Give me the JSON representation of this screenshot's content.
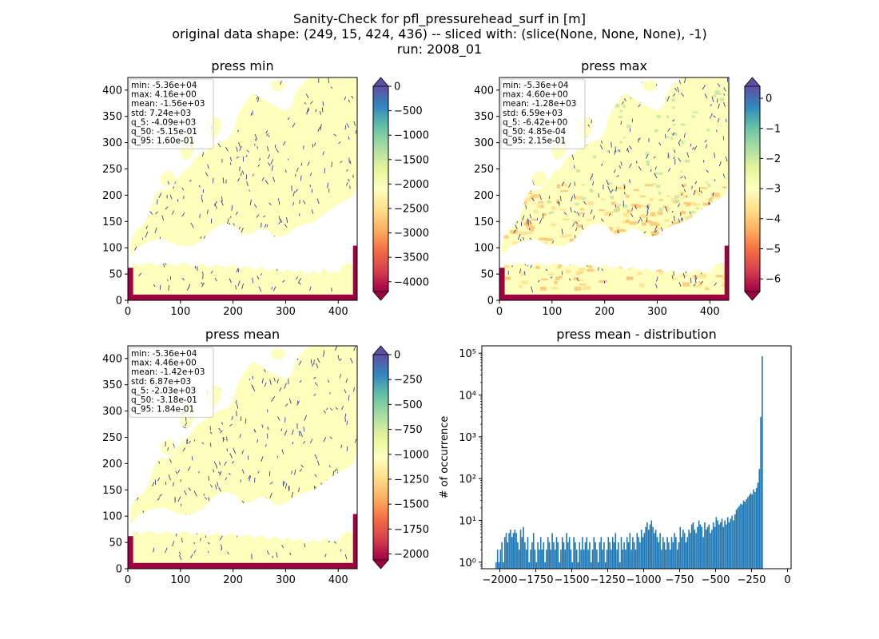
{
  "suptitle": {
    "line1": "Sanity-Check for pfl_pressurehead_surf in [m]",
    "line2": "original data shape: (249, 15, 424, 436) -- sliced with: (slice(None, None, None), -1)",
    "line3": "run: 2008_01"
  },
  "colors": {
    "land": "#fefebd",
    "low_extreme": "#9e0142",
    "river": "#313695",
    "hist_bar": "#1f77b4",
    "colormap": "Spectral"
  },
  "chart_data": [
    {
      "type": "heatmap",
      "title": "press min",
      "xticks": [
        0,
        100,
        200,
        300,
        400
      ],
      "yticks": [
        0,
        50,
        100,
        150,
        200,
        250,
        300,
        350,
        400
      ],
      "xlim": [
        0,
        436
      ],
      "ylim": [
        0,
        424
      ],
      "colorbar": {
        "vmin": -4200,
        "vmax": 0,
        "ticks": [
          0,
          -500,
          -1000,
          -1500,
          -2000,
          -2500,
          -3000,
          -3500,
          -4000
        ],
        "extend": "both"
      },
      "stats": [
        "min: -5.36e+04",
        "max: 4.16e+00",
        "mean: -1.56e+03",
        "std: 7.24e+03",
        "q_5: -4.09e+03",
        "q_50: -5.15e-01",
        "q_95: 1.60e-01"
      ]
    },
    {
      "type": "heatmap",
      "title": "press max",
      "xticks": [
        0,
        100,
        200,
        300,
        400
      ],
      "yticks": [
        0,
        50,
        100,
        150,
        200,
        250,
        300,
        350,
        400
      ],
      "xlim": [
        0,
        436
      ],
      "ylim": [
        0,
        424
      ],
      "colorbar": {
        "vmin": -6.42,
        "vmax": 0.4,
        "ticks": [
          0,
          -1,
          -2,
          -3,
          -4,
          -5,
          -6
        ],
        "extend": "both"
      },
      "stats": [
        "min: -5.36e+04",
        "max: 4.60e+00",
        "mean: -1.28e+03",
        "std: 6.59e+03",
        "q_5: -6.42e+00",
        "q_50: 4.85e-04",
        "q_95: 2.15e-01"
      ]
    },
    {
      "type": "heatmap",
      "title": "press mean",
      "xticks": [
        0,
        100,
        200,
        300,
        400
      ],
      "yticks": [
        0,
        50,
        100,
        150,
        200,
        250,
        300,
        350,
        400
      ],
      "xlim": [
        0,
        436
      ],
      "ylim": [
        0,
        424
      ],
      "colorbar": {
        "vmin": -2060,
        "vmax": 0,
        "ticks": [
          0,
          -250,
          -500,
          -750,
          -1000,
          -1250,
          -1500,
          -1750,
          -2000
        ],
        "extend": "both"
      },
      "stats": [
        "min: -5.36e+04",
        "max: 4.46e+00",
        "mean: -1.42e+03",
        "std: 6.87e+03",
        "q_5: -2.03e+03",
        "q_50: -3.18e-01",
        "q_95: 1.84e-01"
      ]
    },
    {
      "type": "bar",
      "title": "press mean - distribution",
      "ylabel": "# of occurrence",
      "yscale": "log",
      "xlim": [
        -2125,
        25
      ],
      "ylim": [
        0.7,
        150000
      ],
      "xticks": [
        -2000,
        -1750,
        -1500,
        -1250,
        -1000,
        -750,
        -500,
        -250,
        0
      ],
      "xtick_labels": [
        "−2000",
        "−1750",
        "−1500",
        "−1250",
        "−1000",
        "−750",
        "−500",
        "−250",
        "0"
      ],
      "yticks": [
        1,
        10,
        100,
        1000,
        10000,
        100000
      ],
      "ytick_labels": [
        "10⁰",
        "10¹",
        "10²",
        "10³",
        "10⁴",
        "10⁵"
      ],
      "bin_width": 10,
      "bin_starts": [
        -2030,
        -2020,
        -2010,
        -2000,
        -1990,
        -1980,
        -1970,
        -1960,
        -1950,
        -1940,
        -1930,
        -1920,
        -1910,
        -1900,
        -1890,
        -1880,
        -1870,
        -1860,
        -1850,
        -1840,
        -1830,
        -1820,
        -1810,
        -1800,
        -1790,
        -1780,
        -1770,
        -1760,
        -1750,
        -1740,
        -1730,
        -1720,
        -1710,
        -1700,
        -1690,
        -1680,
        -1670,
        -1660,
        -1650,
        -1640,
        -1630,
        -1620,
        -1610,
        -1600,
        -1590,
        -1580,
        -1570,
        -1560,
        -1550,
        -1540,
        -1530,
        -1520,
        -1510,
        -1500,
        -1490,
        -1480,
        -1470,
        -1460,
        -1450,
        -1440,
        -1430,
        -1420,
        -1410,
        -1400,
        -1390,
        -1380,
        -1370,
        -1360,
        -1350,
        -1340,
        -1330,
        -1320,
        -1310,
        -1300,
        -1290,
        -1280,
        -1270,
        -1260,
        -1250,
        -1240,
        -1230,
        -1220,
        -1210,
        -1200,
        -1190,
        -1180,
        -1170,
        -1160,
        -1150,
        -1140,
        -1130,
        -1120,
        -1110,
        -1100,
        -1090,
        -1080,
        -1070,
        -1060,
        -1050,
        -1040,
        -1030,
        -1020,
        -1010,
        -1000,
        -990,
        -980,
        -970,
        -960,
        -950,
        -940,
        -930,
        -920,
        -910,
        -900,
        -890,
        -880,
        -870,
        -860,
        -850,
        -840,
        -830,
        -820,
        -810,
        -800,
        -790,
        -780,
        -770,
        -760,
        -750,
        -740,
        -730,
        -720,
        -710,
        -700,
        -690,
        -680,
        -670,
        -660,
        -650,
        -640,
        -630,
        -620,
        -610,
        -600,
        -590,
        -580,
        -570,
        -560,
        -550,
        -540,
        -530,
        -520,
        -510,
        -500,
        -490,
        -480,
        -470,
        -460,
        -450,
        -440,
        -430,
        -420,
        -410,
        -400,
        -390,
        -380,
        -370,
        -360,
        -350,
        -340,
        -330,
        -320,
        -310,
        -300,
        -290,
        -280,
        -270,
        -260,
        -250,
        -240,
        -230,
        -220,
        -210,
        -200,
        -190,
        -180,
        -170,
        -160,
        -150,
        -140,
        -130,
        -120,
        -110,
        -100,
        -90,
        -80,
        -70,
        -60,
        -50,
        -40,
        -30,
        -20,
        -10
      ],
      "counts": [
        1,
        2,
        1,
        2,
        3,
        1,
        4,
        5,
        3,
        5,
        6,
        4,
        5,
        6,
        5,
        3,
        2,
        6,
        4,
        7,
        3,
        2,
        4,
        1,
        2,
        3,
        5,
        2,
        1,
        3,
        2,
        4,
        2,
        3,
        1,
        2,
        4,
        3,
        2,
        5,
        3,
        2,
        4,
        3,
        1,
        2,
        4,
        3,
        2,
        5,
        3,
        4,
        2,
        1,
        4,
        3,
        2,
        1,
        3,
        2,
        4,
        2,
        3,
        4,
        2,
        3,
        1,
        2,
        4,
        3,
        2,
        1,
        3,
        4,
        2,
        3,
        1,
        2,
        4,
        3,
        2,
        4,
        3,
        5,
        2,
        3,
        1,
        4,
        2,
        3,
        2,
        4,
        3,
        5,
        2,
        4,
        3,
        2,
        5,
        4,
        3,
        6,
        4,
        5,
        7,
        9,
        6,
        8,
        10,
        7,
        5,
        6,
        4,
        3,
        5,
        2,
        4,
        3,
        2,
        4,
        3,
        2,
        4,
        3,
        5,
        4,
        2,
        3,
        7,
        4,
        6,
        5,
        3,
        4,
        6,
        5,
        8,
        9,
        6,
        5,
        7,
        10,
        8,
        7,
        4,
        9,
        6,
        7,
        8,
        5,
        6,
        9,
        7,
        12,
        10,
        8,
        9,
        11,
        7,
        10,
        8,
        12,
        9,
        11,
        13,
        10,
        14,
        18,
        20,
        22,
        25,
        24,
        30,
        28,
        32,
        36,
        40,
        45,
        42,
        55,
        48,
        60,
        80,
        170,
        3000,
        85000
      ]
    }
  ]
}
